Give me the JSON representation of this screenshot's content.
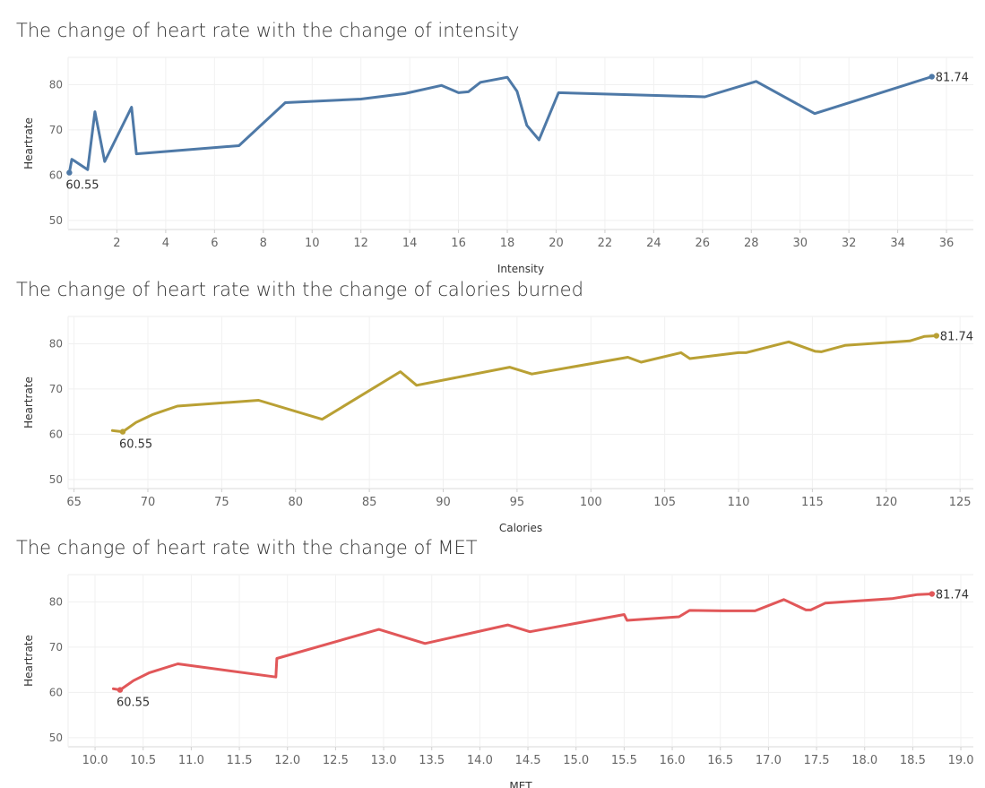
{
  "chart_data": [
    {
      "type": "line",
      "title": "The change of heart rate with the change of intensity",
      "xlabel": "Intensity",
      "ylabel": "Heartrate",
      "xlim": [
        0,
        37.1
      ],
      "ylim": [
        48,
        86
      ],
      "xticks": [
        2,
        4,
        6,
        8,
        10,
        12,
        14,
        16,
        18,
        20,
        22,
        24,
        26,
        28,
        30,
        32,
        34,
        36
      ],
      "xtick_labels": [
        "2",
        "4",
        "6",
        "8",
        "10",
        "12",
        "14",
        "16",
        "18",
        "20",
        "22",
        "24",
        "26",
        "28",
        "30",
        "32",
        "34",
        "36"
      ],
      "yticks": [
        50,
        60,
        70,
        80
      ],
      "ytick_labels": [
        "50",
        "60",
        "70",
        "80"
      ],
      "color": "#4e79a7",
      "grid": true,
      "series": [
        {
          "x": [
            0.05,
            0.15,
            0.3,
            0.8,
            1.1,
            1.5,
            2.6,
            2.8,
            7.0,
            8.9,
            12.0,
            13.8,
            15.3,
            16.0,
            16.4,
            16.9,
            18.0,
            18.4,
            18.8,
            19.3,
            20.1,
            26.1,
            28.2,
            30.6,
            35.4
          ],
          "y": [
            60.55,
            63.5,
            63.0,
            61.2,
            74.0,
            63.0,
            75.0,
            64.7,
            66.5,
            76.0,
            76.8,
            78.0,
            79.8,
            78.2,
            78.4,
            80.5,
            81.6,
            78.5,
            71.0,
            67.8,
            78.2,
            77.3,
            80.7,
            73.6,
            81.74
          ]
        }
      ],
      "annotations": [
        {
          "label": "60.55",
          "x": 0.05,
          "y": 60.55,
          "position": "below"
        },
        {
          "label": "81.74",
          "x": 35.4,
          "y": 81.74,
          "position": "right"
        }
      ]
    },
    {
      "type": "line",
      "title": "The change of heart rate with the change of calories burned",
      "xlabel": "Calories",
      "ylabel": "Heartrate",
      "xlim": [
        64.6,
        125.9
      ],
      "ylim": [
        48,
        86
      ],
      "xticks": [
        65,
        70,
        75,
        80,
        85,
        90,
        95,
        100,
        105,
        110,
        115,
        120,
        125
      ],
      "xtick_labels": [
        "65",
        "70",
        "75",
        "80",
        "85",
        "90",
        "95",
        "100",
        "105",
        "110",
        "115",
        "120",
        "125"
      ],
      "yticks": [
        50,
        60,
        70,
        80
      ],
      "ytick_labels": [
        "50",
        "60",
        "70",
        "80"
      ],
      "color": "#b9a034",
      "grid": true,
      "series": [
        {
          "x": [
            67.6,
            68.3,
            69.2,
            70.3,
            72.0,
            77.5,
            81.8,
            87.1,
            88.2,
            94.5,
            96.0,
            102.5,
            103.4,
            106.1,
            106.7,
            110.0,
            110.5,
            113.4,
            115.2,
            115.6,
            117.2,
            121.6,
            122.6,
            123.4
          ],
          "y": [
            60.8,
            60.55,
            62.6,
            64.3,
            66.2,
            67.5,
            63.3,
            73.8,
            70.8,
            74.8,
            73.3,
            77.0,
            75.9,
            78.0,
            76.7,
            78.0,
            78.0,
            80.4,
            78.3,
            78.2,
            79.6,
            80.6,
            81.6,
            81.74
          ]
        }
      ],
      "annotations": [
        {
          "label": "60.55",
          "x": 68.3,
          "y": 60.55,
          "position": "below"
        },
        {
          "label": "81.74",
          "x": 123.4,
          "y": 81.74,
          "position": "right"
        }
      ]
    },
    {
      "type": "line",
      "title": "The change of heart rate with the change of MET",
      "xlabel": "MET",
      "ylabel": "Heartrate",
      "xlim": [
        9.72,
        19.13
      ],
      "ylim": [
        48,
        86
      ],
      "xticks": [
        10.0,
        10.5,
        11.0,
        11.5,
        12.0,
        12.5,
        13.0,
        13.5,
        14.0,
        14.5,
        15.0,
        15.5,
        16.0,
        16.5,
        17.0,
        17.5,
        18.0,
        18.5,
        19.0
      ],
      "xtick_labels": [
        "10.0",
        "10.5",
        "11.0",
        "11.5",
        "12.0",
        "12.5",
        "13.0",
        "13.5",
        "14.0",
        "14.5",
        "15.0",
        "15.5",
        "16.0",
        "16.5",
        "17.0",
        "17.5",
        "18.0",
        "18.5",
        "19.0"
      ],
      "yticks": [
        50,
        60,
        70,
        80
      ],
      "ytick_labels": [
        "50",
        "60",
        "70",
        "80"
      ],
      "color": "#e15759",
      "grid": true,
      "series": [
        {
          "x": [
            10.19,
            10.26,
            10.4,
            10.56,
            10.86,
            11.88,
            11.89,
            12.95,
            13.43,
            14.29,
            14.52,
            15.5,
            15.53,
            16.07,
            16.18,
            16.53,
            16.86,
            17.16,
            17.39,
            17.44,
            17.59,
            18.28,
            18.55,
            18.7
          ],
          "y": [
            60.8,
            60.55,
            62.6,
            64.3,
            66.3,
            63.4,
            67.5,
            73.9,
            70.8,
            74.9,
            73.4,
            77.2,
            75.9,
            76.7,
            78.1,
            78.0,
            78.0,
            80.5,
            78.2,
            78.2,
            79.7,
            80.7,
            81.6,
            81.74
          ]
        }
      ],
      "annotations": [
        {
          "label": "60.55",
          "x": 10.26,
          "y": 60.55,
          "position": "below"
        },
        {
          "label": "81.74",
          "x": 18.7,
          "y": 81.74,
          "position": "right"
        }
      ]
    }
  ]
}
